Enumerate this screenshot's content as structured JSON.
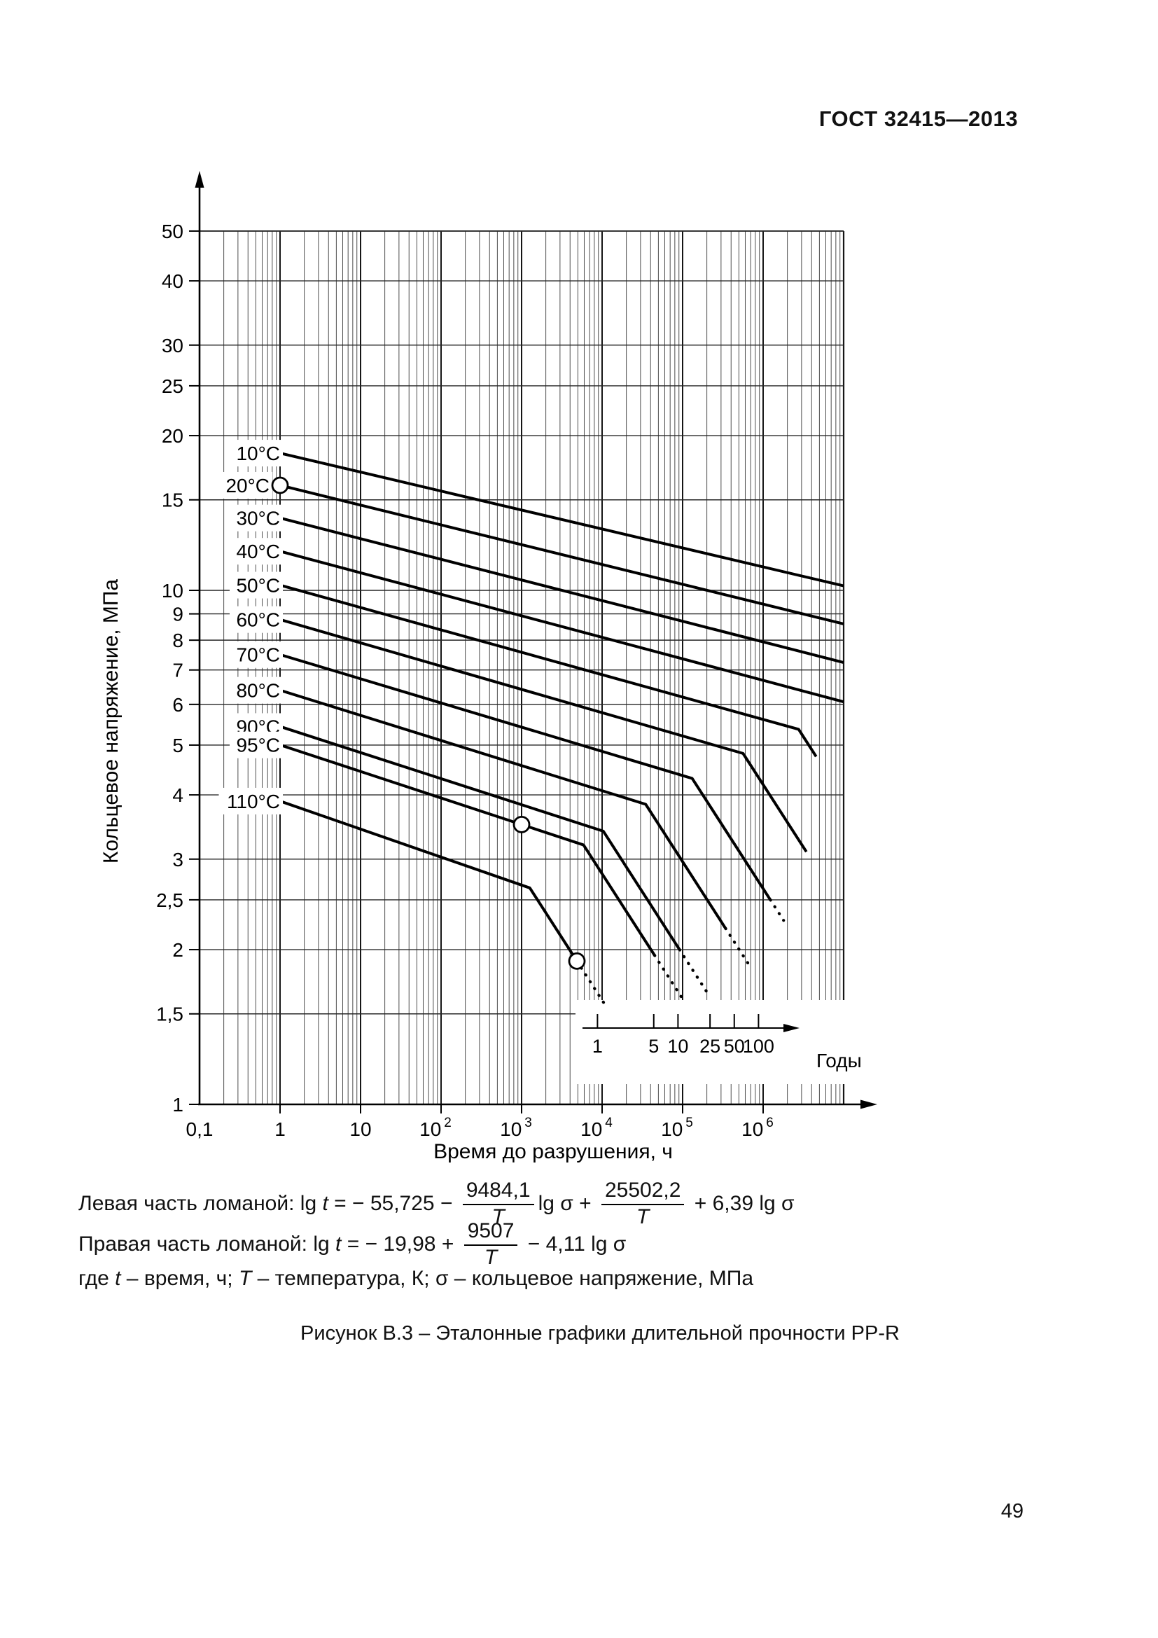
{
  "page": {
    "header_title": "ГОСТ 32415—2013",
    "page_number": "49"
  },
  "figure": {
    "caption": "Рисунок В.3 – Эталонные графики длительной прочности PP-R",
    "formula_left_tokens": [
      {
        "t": "Левая часть ломаной: lg "
      },
      {
        "t": "t",
        "i": true
      },
      {
        "t": " = − 55,725 − "
      },
      {
        "f": [
          "9484,1",
          "T"
        ]
      },
      {
        "t": "lg σ + "
      },
      {
        "f": [
          "25502,2",
          "T"
        ]
      },
      {
        "t": " + 6,39 lg σ"
      }
    ],
    "formula_right_tokens": [
      {
        "t": "Правая часть ломаной: lg "
      },
      {
        "t": "t",
        "i": true
      },
      {
        "t": " = − 19,98 + "
      },
      {
        "f": [
          "9507",
          "T"
        ]
      },
      {
        "t": " − 4,11 lg σ"
      }
    ],
    "where_tokens": [
      {
        "t": "где "
      },
      {
        "t": "t",
        "i": true
      },
      {
        "t": " – время, ч; "
      },
      {
        "t": "T",
        "i": true
      },
      {
        "t": " – температура, К; σ – кольцевое напряжение, МПа"
      }
    ]
  },
  "chart_data": {
    "type": "line",
    "title": "Эталонные графики длительной прочности PP-R",
    "xlabel": "Время до разрушения, ч",
    "ylabel": "Кольцевое напряжение, МПа",
    "x_scale": "log",
    "y_scale": "log",
    "xlim_lg": [
      -1,
      7
    ],
    "ylim": [
      1,
      50
    ],
    "grid": true,
    "x_ticks": [
      {
        "lg": -1,
        "base": "0,1",
        "exp": ""
      },
      {
        "lg": 0,
        "base": "1",
        "exp": ""
      },
      {
        "lg": 1,
        "base": "10",
        "exp": ""
      },
      {
        "lg": 2,
        "base": "10",
        "exp": "2"
      },
      {
        "lg": 3,
        "base": "10",
        "exp": "3"
      },
      {
        "lg": 4,
        "base": "10",
        "exp": "4"
      },
      {
        "lg": 5,
        "base": "10",
        "exp": "5"
      },
      {
        "lg": 6,
        "base": "10",
        "exp": "6"
      }
    ],
    "y_ticks": [
      {
        "v": 50,
        "label": "50"
      },
      {
        "v": 40,
        "label": "40"
      },
      {
        "v": 30,
        "label": "30"
      },
      {
        "v": 25,
        "label": "25"
      },
      {
        "v": 20,
        "label": "20"
      },
      {
        "v": 15,
        "label": "15"
      },
      {
        "v": 10,
        "label": "10"
      },
      {
        "v": 9,
        "label": "9"
      },
      {
        "v": 8,
        "label": "8"
      },
      {
        "v": 7,
        "label": "7"
      },
      {
        "v": 6,
        "label": "6"
      },
      {
        "v": 5,
        "label": "5"
      },
      {
        "v": 4,
        "label": "4"
      },
      {
        "v": 3,
        "label": "3"
      },
      {
        "v": 2.5,
        "label": "2,5"
      },
      {
        "v": 2,
        "label": "2"
      },
      {
        "v": 1.5,
        "label": "1,5"
      },
      {
        "v": 1,
        "label": "1"
      }
    ],
    "years_axis": {
      "label": "Годы",
      "tick_years": [
        1,
        5,
        10,
        25,
        50,
        100
      ],
      "tick_labels": [
        "1",
        "5",
        "10",
        "25",
        "50",
        "100"
      ],
      "hours_per_year": 8760
    },
    "model": {
      "left_branch_text": "lg t = −55,725 − (9484,1/T)·lg σ + 25502,2/T + 6,39·lg σ",
      "right_branch_text": "lg t = −19,98 + 9507/T − 4,11·lg σ",
      "a": -55.725,
      "b": 9484.1,
      "c": 25502.2,
      "d": 6.39,
      "e": -19.98,
      "f": 9507,
      "g": 4.11,
      "kelvin_offset": 273.15
    },
    "series": [
      {
        "label": "10°C",
        "temp_c": 10,
        "sigma_at_1h": 18.5,
        "sigma_solid_end": null,
        "sigma_dot_end": null
      },
      {
        "label": "20°C",
        "temp_c": 20,
        "sigma_at_1h": 16.0,
        "sigma_solid_end": null,
        "sigma_dot_end": null
      },
      {
        "label": "30°C",
        "temp_c": 30,
        "sigma_at_1h": 14.0,
        "sigma_solid_end": null,
        "sigma_dot_end": null
      },
      {
        "label": "40°C",
        "temp_c": 40,
        "sigma_at_1h": 12.0,
        "sigma_solid_end": null,
        "sigma_dot_end": null
      },
      {
        "label": "50°C",
        "temp_c": 50,
        "sigma_at_1h": 10.2,
        "sigma_solid_end": 4.75,
        "sigma_dot_end": null
      },
      {
        "label": "60°C",
        "temp_c": 60,
        "sigma_at_1h": 8.9,
        "sigma_solid_end": 3.1,
        "sigma_dot_end": null
      },
      {
        "label": "70°C",
        "temp_c": 70,
        "sigma_at_1h": 7.6,
        "sigma_solid_end": 2.5,
        "sigma_dot_end": 2.28
      },
      {
        "label": "80°C",
        "temp_c": 80,
        "sigma_at_1h": 6.5,
        "sigma_solid_end": 2.2,
        "sigma_dot_end": 1.85
      },
      {
        "label": "90°C",
        "temp_c": 90,
        "sigma_at_1h": 5.5,
        "sigma_solid_end": 2.0,
        "sigma_dot_end": 1.65
      },
      {
        "label": "95°C",
        "temp_c": 95,
        "sigma_at_1h": 5.0,
        "sigma_solid_end": 1.95,
        "sigma_dot_end": 1.6
      },
      {
        "label": "110°C",
        "temp_c": 110,
        "sigma_at_1h": 3.9,
        "sigma_solid_end": 1.9,
        "sigma_dot_end": 1.55
      }
    ],
    "markers": [
      {
        "series": "20°C",
        "lgt": 0,
        "sigma_approx": 16.0
      },
      {
        "series": "95°C",
        "lgt": 3.0,
        "sigma_approx": 3.5
      },
      {
        "series": "110°C",
        "lgt": 3.687,
        "sigma_approx": 1.9
      }
    ]
  }
}
